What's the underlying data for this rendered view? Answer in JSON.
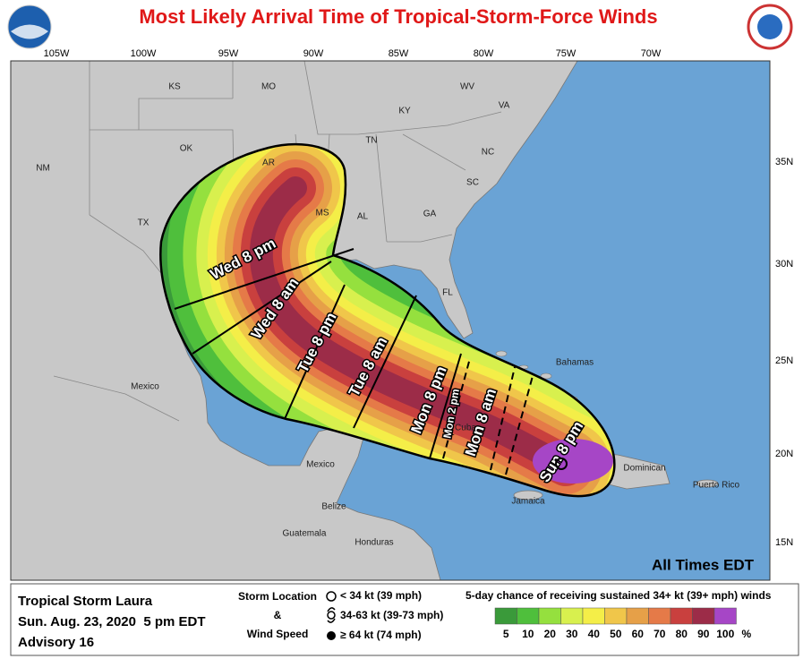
{
  "header": {
    "title": "Most Likely Arrival Time of Tropical-Storm-Force Winds"
  },
  "map": {
    "longitude_labels": [
      "105W",
      "100W",
      "95W",
      "90W",
      "85W",
      "80W",
      "75W",
      "70W"
    ],
    "latitude_labels": [
      "35N",
      "30N",
      "25N",
      "20N",
      "15N"
    ],
    "place_labels": [
      "KS",
      "MO",
      "KY",
      "WV",
      "VA",
      "TN",
      "NC",
      "OK",
      "AR",
      "SC",
      "MS",
      "AL",
      "GA",
      "TX",
      "NM",
      "FL",
      "Mexico",
      "Bahamas",
      "Cuba",
      "Mexico",
      "Belize",
      "Jamaica",
      "Dominican",
      "Puerto Rico",
      "Guatemala",
      "Honduras"
    ],
    "time_labels": [
      "Wed 8 pm",
      "Wed 8 am",
      "Tue 8 pm",
      "Tue 8 am",
      "Mon 8 pm",
      "Mon 2 pm",
      "Mon 8 am",
      "Sun 8 pm"
    ],
    "time_zone_note": "All Times EDT"
  },
  "footer": {
    "storm_name": "Tropical Storm Laura",
    "datetime": "Sun. Aug. 23, 2020  5 pm EDT",
    "advisory": "Advisory 16",
    "symbol_heading": [
      "Storm Location",
      "&",
      "Wind Speed"
    ],
    "symbols": [
      "< 34 kt (39 mph)",
      "34-63 kt (39-73 mph)",
      "≥ 64 kt (74 mph)"
    ],
    "scale_title": "5-day chance of receiving sustained 34+ kt (39+ mph) winds",
    "scale": [
      {
        "label": 5,
        "color": "#3a9a3a"
      },
      {
        "label": 10,
        "color": "#4fbf3c"
      },
      {
        "label": 20,
        "color": "#95e03e"
      },
      {
        "label": 30,
        "color": "#d8f04e"
      },
      {
        "label": 40,
        "color": "#f4ee48"
      },
      {
        "label": 50,
        "color": "#f0c64a"
      },
      {
        "label": 60,
        "color": "#e6a048"
      },
      {
        "label": 70,
        "color": "#e57a48"
      },
      {
        "label": 80,
        "color": "#c9403e"
      },
      {
        "label": 90,
        "color": "#9c2c48"
      },
      {
        "label": 100,
        "color": "#a646c6"
      }
    ],
    "scale_unit": "%"
  }
}
